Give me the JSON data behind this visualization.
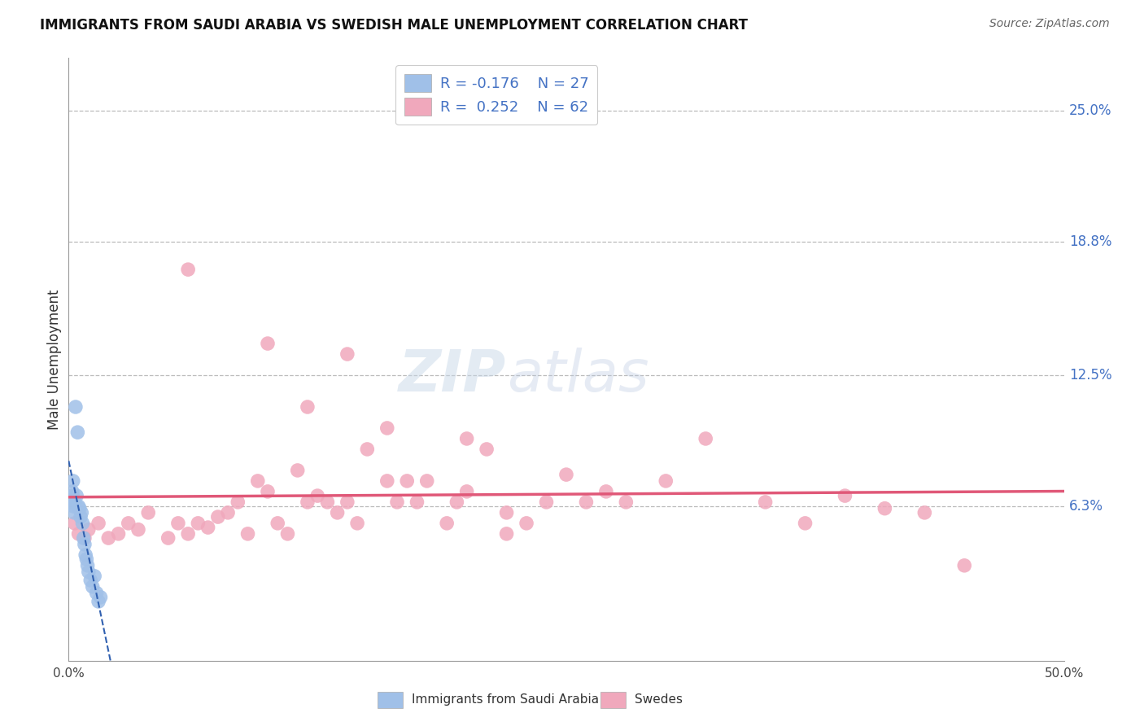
{
  "title": "IMMIGRANTS FROM SAUDI ARABIA VS SWEDISH MALE UNEMPLOYMENT CORRELATION CHART",
  "source": "Source: ZipAtlas.com",
  "ylabel": "Male Unemployment",
  "y_tick_labels": [
    "6.3%",
    "12.5%",
    "18.8%",
    "25.0%"
  ],
  "y_tick_values": [
    6.3,
    12.5,
    18.8,
    25.0
  ],
  "xlim": [
    0.0,
    50.0
  ],
  "ylim": [
    -1.0,
    27.5
  ],
  "legend_R_blue": "R = -0.176",
  "legend_N_blue": "N = 27",
  "legend_R_pink": "R =  0.252",
  "legend_N_pink": "N = 62",
  "blue_color": "#a0c0e8",
  "pink_color": "#f0a8bc",
  "blue_line_color": "#3060b0",
  "pink_line_color": "#e05878",
  "label_blue": "Immigrants from Saudi Arabia",
  "label_pink": "Swedes",
  "blue_x": [
    0.15,
    0.18,
    0.2,
    0.22,
    0.25,
    0.28,
    0.3,
    0.35,
    0.4,
    0.45,
    0.5,
    0.55,
    0.6,
    0.65,
    0.7,
    0.75,
    0.8,
    0.85,
    0.9,
    0.95,
    1.0,
    1.1,
    1.2,
    1.3,
    1.4,
    1.5,
    1.6
  ],
  "blue_y": [
    6.5,
    7.0,
    6.8,
    7.5,
    6.3,
    6.0,
    6.5,
    11.0,
    6.8,
    9.8,
    6.3,
    6.2,
    5.8,
    6.0,
    5.5,
    4.8,
    4.5,
    4.0,
    3.8,
    3.5,
    3.2,
    2.8,
    2.5,
    3.0,
    2.2,
    1.8,
    2.0
  ],
  "pink_x": [
    0.3,
    0.5,
    0.8,
    1.0,
    1.5,
    2.0,
    2.5,
    3.0,
    3.5,
    4.0,
    5.0,
    5.5,
    6.0,
    6.5,
    7.0,
    7.5,
    8.0,
    8.5,
    9.0,
    9.5,
    10.0,
    10.5,
    11.0,
    11.5,
    12.0,
    12.5,
    13.0,
    13.5,
    14.0,
    14.5,
    15.0,
    16.0,
    16.5,
    17.0,
    17.5,
    18.0,
    19.0,
    19.5,
    20.0,
    21.0,
    22.0,
    23.0,
    24.0,
    25.0,
    26.0,
    27.0,
    28.0,
    30.0,
    32.0,
    35.0,
    37.0,
    39.0,
    41.0,
    43.0,
    45.0,
    20.0,
    14.0,
    22.0,
    10.0,
    16.0,
    6.0,
    12.0
  ],
  "pink_y": [
    5.5,
    5.0,
    4.8,
    5.2,
    5.5,
    4.8,
    5.0,
    5.5,
    5.2,
    6.0,
    4.8,
    5.5,
    5.0,
    5.5,
    5.3,
    5.8,
    6.0,
    6.5,
    5.0,
    7.5,
    7.0,
    5.5,
    5.0,
    8.0,
    6.5,
    6.8,
    6.5,
    6.0,
    6.5,
    5.5,
    9.0,
    7.5,
    6.5,
    7.5,
    6.5,
    7.5,
    5.5,
    6.5,
    7.0,
    9.0,
    6.0,
    5.5,
    6.5,
    7.8,
    6.5,
    7.0,
    6.5,
    7.5,
    9.5,
    6.5,
    5.5,
    6.8,
    6.2,
    6.0,
    3.5,
    9.5,
    13.5,
    5.0,
    14.0,
    10.0,
    17.5,
    11.0
  ],
  "watermark_text": "ZIPatlas",
  "bg_color": "#ffffff"
}
